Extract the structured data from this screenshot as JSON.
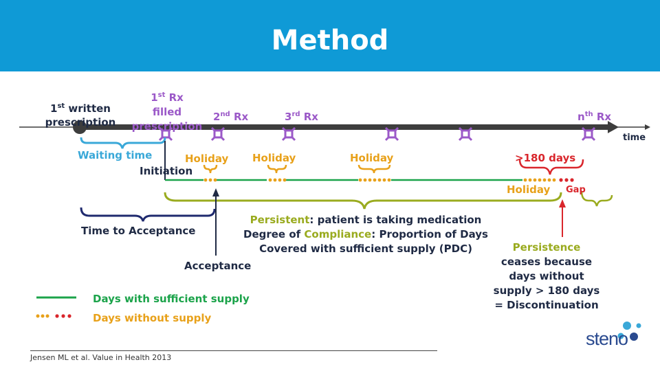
{
  "header": {
    "title": "Method"
  },
  "timeline": {
    "first_written": [
      "1",
      "st",
      " written",
      "prescription"
    ],
    "first_rx": [
      "1",
      "st",
      " Rx",
      "filled",
      "prescription"
    ],
    "second_rx": [
      "2",
      "nd",
      " Rx"
    ],
    "third_rx": [
      "3",
      "rd",
      " Rx"
    ],
    "nth_rx": [
      "n",
      "th",
      " Rx"
    ],
    "time": "time",
    "waiting_time": "Waiting time",
    "initiation": "Initiation",
    "holiday": "Holiday",
    "over_180": ">180 days",
    "gap": "Gap",
    "time_to_acceptance": "Time to Acceptance",
    "acceptance": "Acceptance"
  },
  "persistent_text": {
    "l1_a": "Persistent",
    "l1_b": ": patient is taking medication",
    "l2_a": "Degree of ",
    "l2_b": "Compliance",
    "l2_c": ": Proportion of Days",
    "l3": "Covered with sufficient supply (PDC)"
  },
  "persistence_ceases": {
    "title": "Persistence",
    "l2": "ceases because",
    "l3": "days  without",
    "l4": "supply > 180 days",
    "l5": "= Discontinuation"
  },
  "legend": {
    "sufficient": "Days with sufficient supply",
    "without": "Days without supply"
  },
  "reference": "Jensen ML et al. Value in Health 2013",
  "logo": "steno",
  "colors": {
    "header": "#0f9ad6",
    "timeline": "#3d3d3d",
    "purple": "#9b59c8",
    "green": "#1ba34a",
    "orange": "#e8a11a",
    "red": "#d9262c",
    "olive": "#9aab1f",
    "navy": "#1f2a6e",
    "blue": "#3aa8d8"
  }
}
